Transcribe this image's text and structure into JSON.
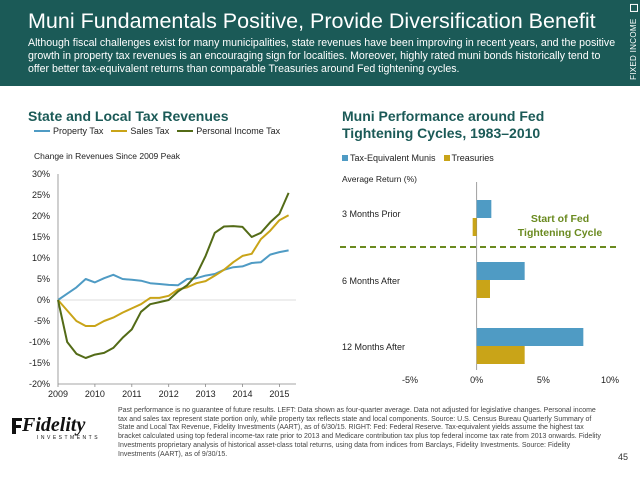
{
  "header": {
    "title": "Muni Fundamentals Positive, Provide Diversification Benefit",
    "subtitle": "Although fiscal challenges exist for many municipalities, state revenues have been improving in recent years, and the positive growth in property tax revenues is an encouraging sign for localities. Moreover, highly rated muni bonds historically tend to offer better tax-equivalent returns than comparable Treasuries around Fed tightening cycles.",
    "side_label": "FIXED INCOME"
  },
  "left_chart": {
    "title": "State and Local Tax Revenues",
    "axis_note": "Change in Revenues Since 2009 Peak"
  },
  "right_chart": {
    "title_line1": "Muni Performance around Fed",
    "title_line2": "Tightening Cycles, 1983–2010",
    "axis_note": "Average Return (%)",
    "annotation_line1": "Start of Fed",
    "annotation_line2": "Tightening Cycle"
  },
  "footnote": "Past performance is no guarantee of future results. LEFT: Data shown as four-quarter average. Data not adjusted for legislative changes. Personal income tax and sales tax represent state portion only, while property tax reflects state and local components. Source: U.S. Census Bureau Quarterly Summary of State and Local Tax Revenue, Fidelity Investments (AART), as of 6/30/15. RIGHT: Fed: Federal Reserve. Tax-equivalent yields assume the highest tax bracket calculated using top federal income-tax rate prior to 2013 and Medicare contribution tax plus top federal income tax rate from 2013 onwards. Fidelity Investments proprietary analysis of historical asset-class total returns, using data from indices from Barclays, Fidelity Investments. Source: Fidelity Investments (AART), as of 9/30/15.",
  "page_number": "45",
  "logo": {
    "name": "Fidelity",
    "sub": "INVESTMENTS"
  },
  "colors": {
    "header": "#1b5a57",
    "property": "#4f9bc4",
    "sales": "#c9a418",
    "income": "#536b17",
    "munis": "#4f9bc4",
    "treasuries": "#c9a418",
    "annotation": "#6a8a1f"
  },
  "chart_data": [
    {
      "type": "line",
      "title": "State and Local Tax Revenues",
      "ylabel": "Change in Revenues Since 2009 Peak",
      "ylim": [
        -20,
        30
      ],
      "yticks": [
        "30%",
        "25%",
        "20%",
        "15%",
        "10%",
        "5%",
        "0%",
        "-5%",
        "-10%",
        "-15%",
        "-20%"
      ],
      "xticks": [
        "2009",
        "2010",
        "2011",
        "2012",
        "2013",
        "2014",
        "2015"
      ],
      "x": [
        2009.0,
        2009.25,
        2009.5,
        2009.75,
        2010.0,
        2010.25,
        2010.5,
        2010.75,
        2011.0,
        2011.25,
        2011.5,
        2011.75,
        2012.0,
        2012.25,
        2012.5,
        2012.75,
        2013.0,
        2013.25,
        2013.5,
        2013.75,
        2014.0,
        2014.25,
        2014.5,
        2014.75,
        2015.0,
        2015.25
      ],
      "series": [
        {
          "name": "Property Tax",
          "values": [
            0,
            1.5,
            3,
            5,
            4.2,
            5.2,
            6,
            5,
            4.8,
            4.6,
            4,
            3.8,
            3.6,
            3.5,
            5,
            5.2,
            5.8,
            6.2,
            7.2,
            7.8,
            8,
            8.8,
            9,
            10.8,
            11.4,
            11.8
          ]
        },
        {
          "name": "Sales Tax",
          "values": [
            0,
            -2.5,
            -5,
            -6.2,
            -6.2,
            -5,
            -4.2,
            -3,
            -2,
            -1,
            0.5,
            0.5,
            1,
            2.5,
            3,
            4,
            4.5,
            5.8,
            7.2,
            9,
            10.5,
            11,
            14.5,
            16.5,
            19,
            20.2
          ]
        },
        {
          "name": "Personal Income Tax",
          "values": [
            0,
            -10,
            -12.8,
            -13.8,
            -13,
            -12.6,
            -11.4,
            -9,
            -7,
            -2.8,
            -1,
            -0.5,
            0,
            2,
            3.5,
            6,
            10.5,
            16,
            17.5,
            17.6,
            17.4,
            15,
            16,
            18.5,
            20.5,
            25.5
          ]
        }
      ]
    },
    {
      "type": "bar",
      "title": "Muni Performance around Fed Tightening Cycles, 1983–2010",
      "ylabel": "Average Return (%)",
      "xlim": [
        -5,
        10
      ],
      "xticks": [
        "-5%",
        "0%",
        "5%",
        "10%"
      ],
      "categories": [
        "3 Months Prior",
        "6 Months After",
        "12 Months After"
      ],
      "series": [
        {
          "name": "Tax-Equivalent Munis",
          "values": [
            1.1,
            3.6,
            8
          ]
        },
        {
          "name": "Treasuries",
          "values": [
            -0.3,
            1.0,
            3.6
          ]
        }
      ],
      "annotation": "Start of Fed Tightening Cycle"
    }
  ]
}
